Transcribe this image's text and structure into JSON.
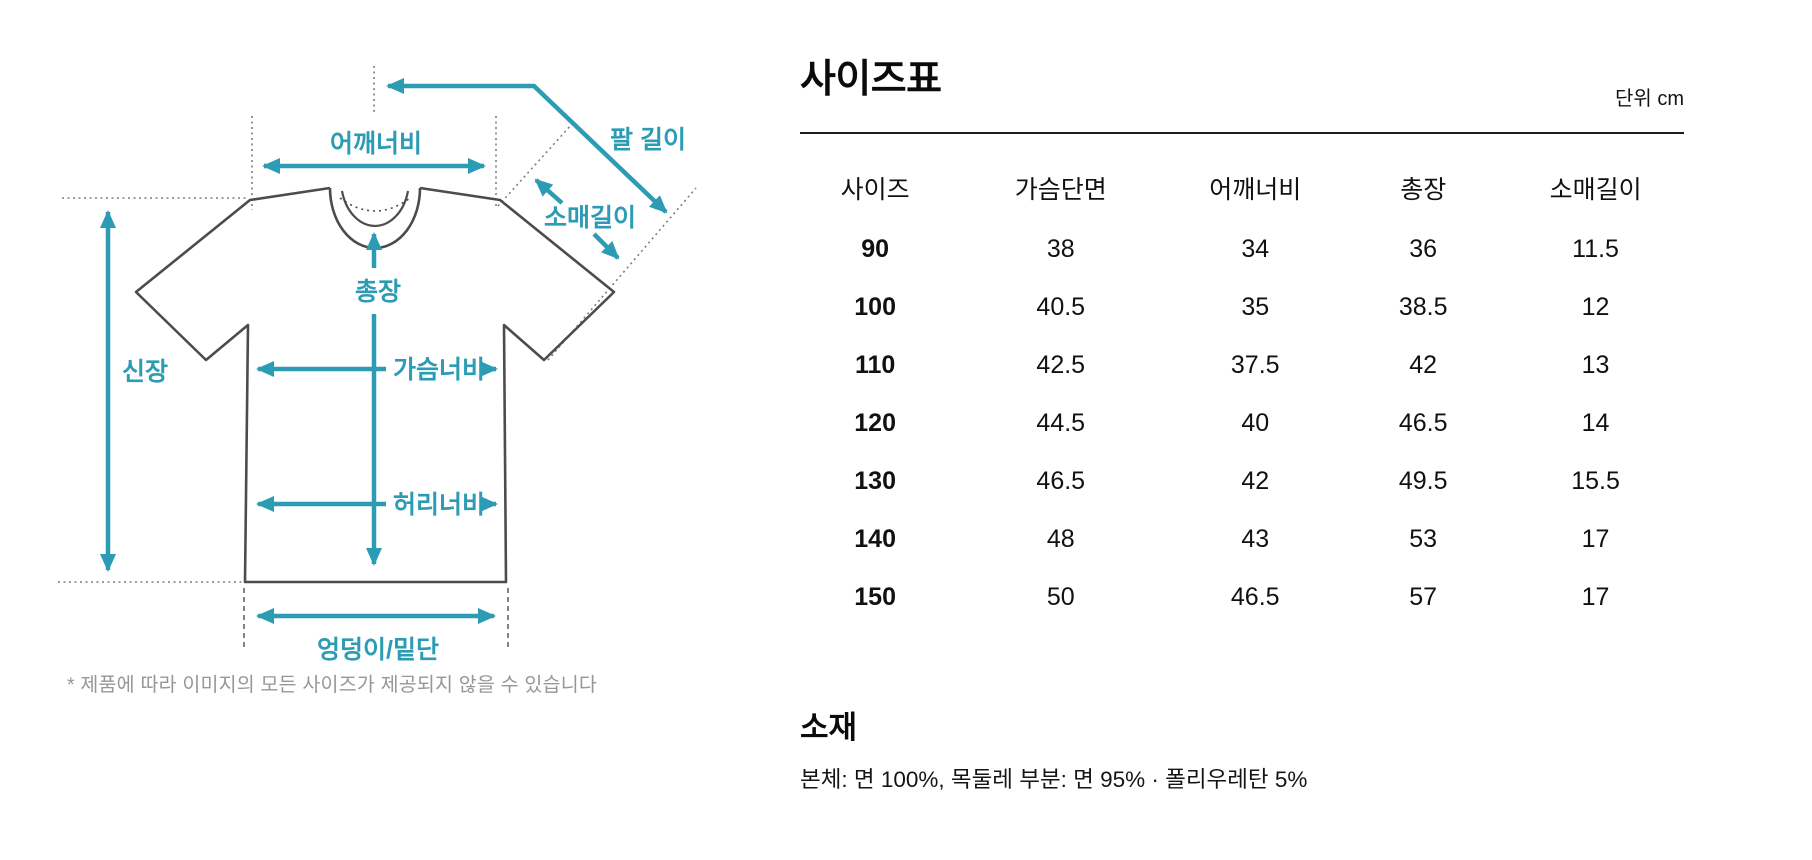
{
  "diagram": {
    "accent_color": "#2C9BB4",
    "labels": {
      "shoulder_width": "어깨너비",
      "arm_length": "팔 길이",
      "sleeve_length": "소매길이",
      "total_length": "총장",
      "height": "신장",
      "chest_width": "가슴너비",
      "waist_width": "허리너비",
      "hip_hem": "엉덩이/밑단"
    },
    "footnote": "* 제품에 따라 이미지의 모든 사이즈가 제공되지 않을 수 있습니다"
  },
  "size_table": {
    "title": "사이즈표",
    "unit_label": "단위 cm",
    "columns": [
      "사이즈",
      "가슴단면",
      "어깨너비",
      "총장",
      "소매길이"
    ],
    "rows": [
      [
        "90",
        "38",
        "34",
        "36",
        "11.5"
      ],
      [
        "100",
        "40.5",
        "35",
        "38.5",
        "12"
      ],
      [
        "110",
        "42.5",
        "37.5",
        "42",
        "13"
      ],
      [
        "120",
        "44.5",
        "40",
        "46.5",
        "14"
      ],
      [
        "130",
        "46.5",
        "42",
        "49.5",
        "15.5"
      ],
      [
        "140",
        "48",
        "43",
        "53",
        "17"
      ],
      [
        "150",
        "50",
        "46.5",
        "57",
        "17"
      ]
    ]
  },
  "material": {
    "heading": "소재",
    "description": "본체: 면 100%, 목둘레 부분: 면 95% · 폴리우레탄 5%"
  }
}
